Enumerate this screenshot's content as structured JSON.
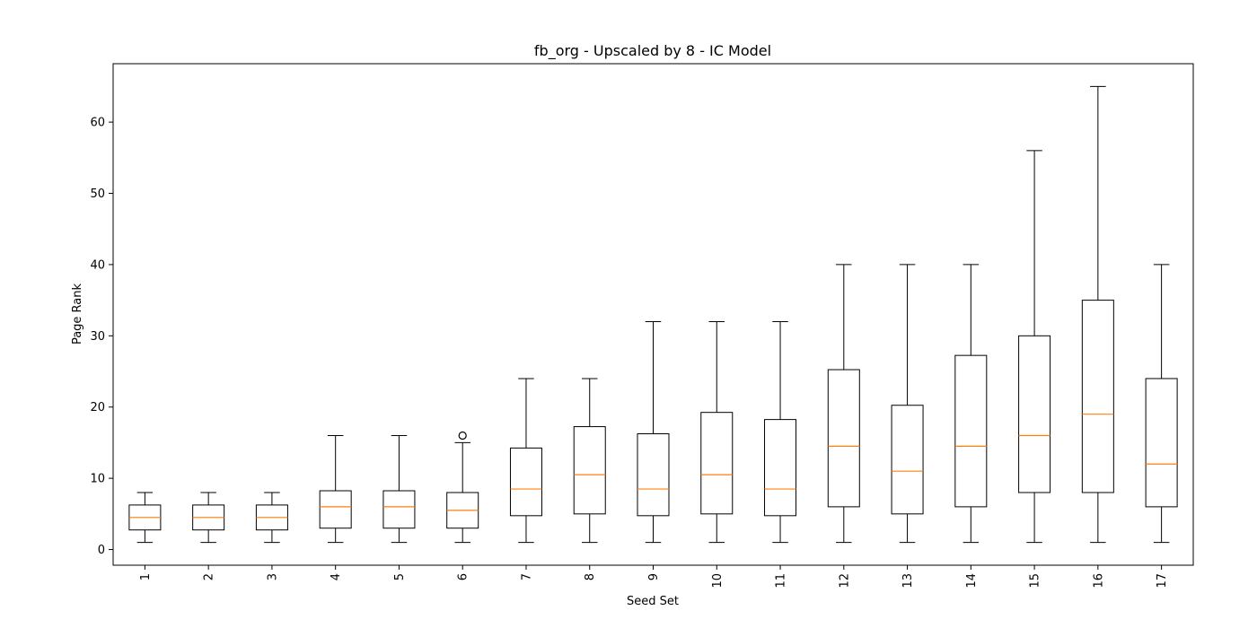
{
  "chart_data": {
    "type": "boxplot",
    "title": "fb_org - Upscaled by 8 - IC Model",
    "xlabel": "Seed Set",
    "ylabel": "Page Rank",
    "ylim": [
      -2.2,
      68.2
    ],
    "yticks": [
      0,
      10,
      20,
      30,
      40,
      50,
      60
    ],
    "categories": [
      "1",
      "2",
      "3",
      "4",
      "5",
      "6",
      "7",
      "8",
      "9",
      "10",
      "11",
      "12",
      "13",
      "14",
      "15",
      "16",
      "17"
    ],
    "boxes": [
      {
        "whisker_low": 1,
        "q1": 2.75,
        "median": 4.5,
        "q3": 6.25,
        "whisker_high": 8,
        "outliers": []
      },
      {
        "whisker_low": 1,
        "q1": 2.75,
        "median": 4.5,
        "q3": 6.25,
        "whisker_high": 8,
        "outliers": []
      },
      {
        "whisker_low": 1,
        "q1": 2.75,
        "median": 4.5,
        "q3": 6.25,
        "whisker_high": 8,
        "outliers": []
      },
      {
        "whisker_low": 1,
        "q1": 3,
        "median": 6,
        "q3": 8.25,
        "whisker_high": 16,
        "outliers": []
      },
      {
        "whisker_low": 1,
        "q1": 3,
        "median": 6,
        "q3": 8.25,
        "whisker_high": 16,
        "outliers": []
      },
      {
        "whisker_low": 1,
        "q1": 3,
        "median": 5.5,
        "q3": 8,
        "whisker_high": 15,
        "outliers": [
          16
        ]
      },
      {
        "whisker_low": 1,
        "q1": 4.75,
        "median": 8.5,
        "q3": 14.25,
        "whisker_high": 24,
        "outliers": []
      },
      {
        "whisker_low": 1,
        "q1": 5,
        "median": 10.5,
        "q3": 17.25,
        "whisker_high": 24,
        "outliers": []
      },
      {
        "whisker_low": 1,
        "q1": 4.75,
        "median": 8.5,
        "q3": 16.25,
        "whisker_high": 32,
        "outliers": []
      },
      {
        "whisker_low": 1,
        "q1": 5,
        "median": 10.5,
        "q3": 19.25,
        "whisker_high": 32,
        "outliers": []
      },
      {
        "whisker_low": 1,
        "q1": 4.75,
        "median": 8.5,
        "q3": 18.25,
        "whisker_high": 32,
        "outliers": []
      },
      {
        "whisker_low": 1,
        "q1": 6,
        "median": 14.5,
        "q3": 25.25,
        "whisker_high": 40,
        "outliers": []
      },
      {
        "whisker_low": 1,
        "q1": 5,
        "median": 11,
        "q3": 20.25,
        "whisker_high": 40,
        "outliers": []
      },
      {
        "whisker_low": 1,
        "q1": 6,
        "median": 14.5,
        "q3": 27.25,
        "whisker_high": 40,
        "outliers": []
      },
      {
        "whisker_low": 1,
        "q1": 8,
        "median": 16,
        "q3": 30,
        "whisker_high": 56,
        "outliers": []
      },
      {
        "whisker_low": 1,
        "q1": 8,
        "median": 19,
        "q3": 35,
        "whisker_high": 65,
        "outliers": []
      },
      {
        "whisker_low": 1,
        "q1": 6,
        "median": 12,
        "q3": 24,
        "whisker_high": 40,
        "outliers": []
      }
    ],
    "grid": false,
    "colors": {
      "box": "#000000",
      "median": "#ff7f0e",
      "axes": "#000000"
    }
  }
}
